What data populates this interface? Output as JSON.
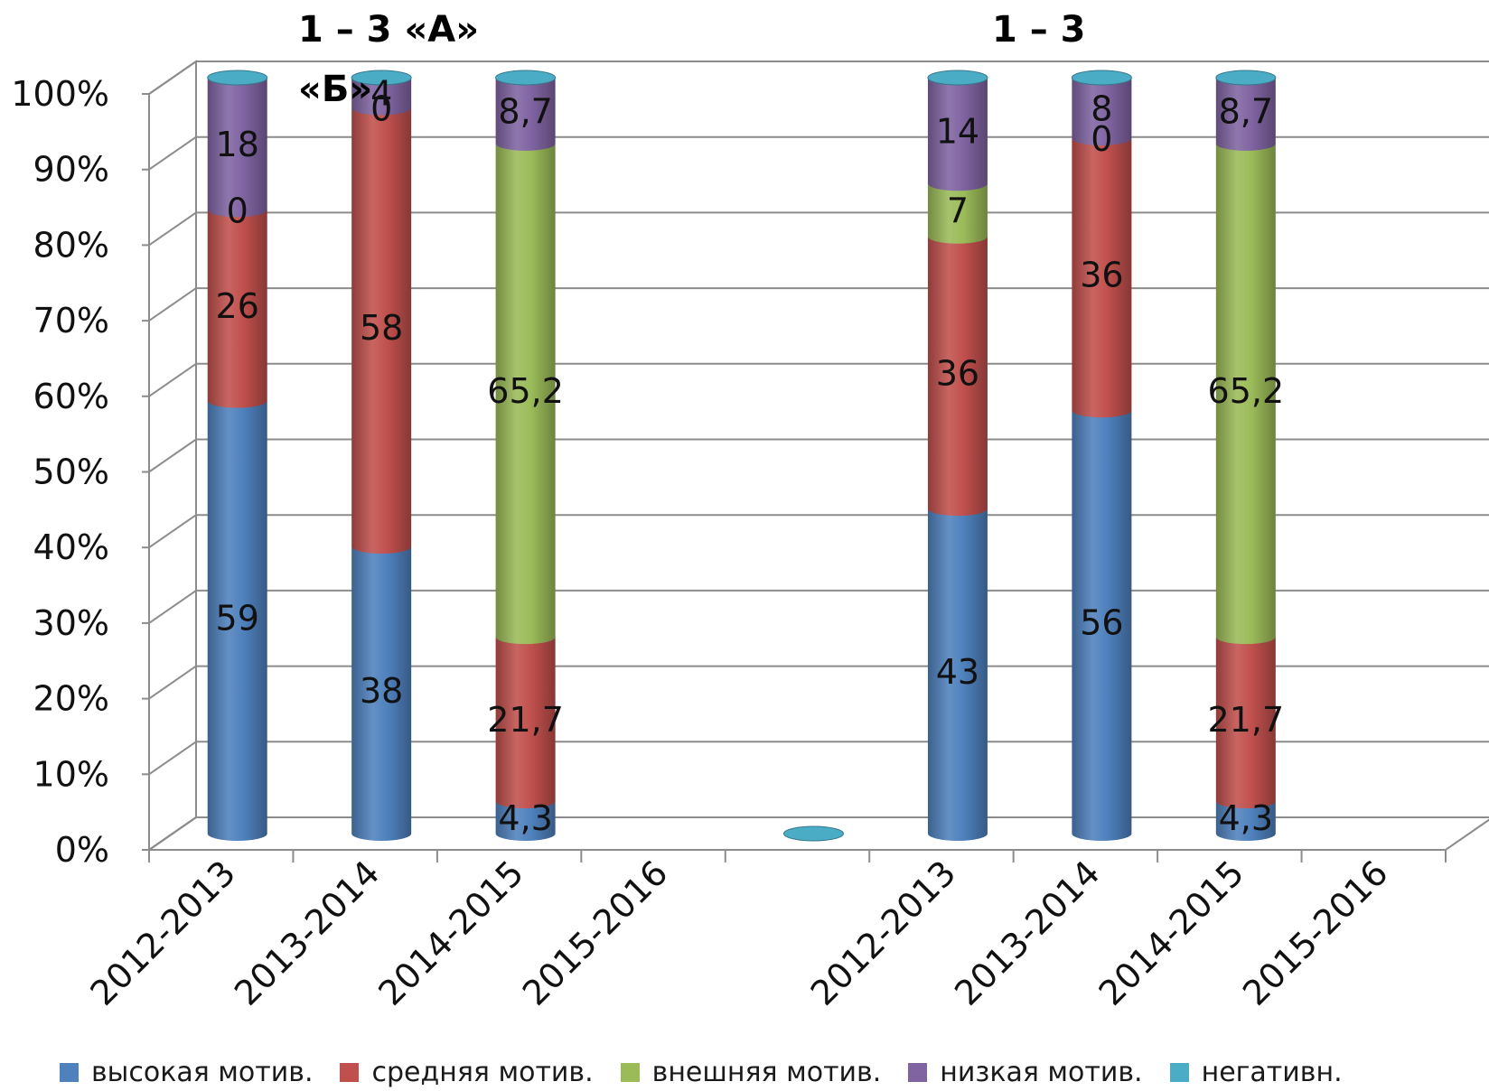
{
  "titles": {
    "group1_line1": "1 – 3 «А»",
    "group1_line2": "«Б»",
    "group2": "1 – 3"
  },
  "chart_data": {
    "type": "bar",
    "stacked": true,
    "style": "3d-cylinder",
    "ylim": [
      0,
      100
    ],
    "yticks": [
      "0%",
      "10%",
      "20%",
      "30%",
      "40%",
      "50%",
      "60%",
      "70%",
      "80%",
      "90%",
      "100%"
    ],
    "grid": true,
    "legend_position": "bottom",
    "categories": [
      "2012-2013",
      "2013-2014",
      "2014-2015",
      "2015-2016",
      "",
      "2012-2013",
      "2013-2014",
      "2014-2015",
      "2015-2016"
    ],
    "series": [
      {
        "name": "высокая мотив.",
        "color": "#4f81bd",
        "values": [
          59,
          38,
          4.3,
          null,
          null,
          43,
          56,
          4.3,
          null
        ],
        "labels": [
          "59",
          "38",
          "4,3",
          null,
          null,
          "43",
          "56",
          "4,3",
          null
        ]
      },
      {
        "name": "средняя мотив.",
        "color": "#c0504d",
        "values": [
          26,
          58,
          21.7,
          null,
          null,
          36,
          36,
          21.7,
          null
        ],
        "labels": [
          "26",
          "58",
          "21,7",
          null,
          null,
          "36",
          "36",
          "21,7",
          null
        ]
      },
      {
        "name": "внешняя мотив.",
        "color": "#9bbb59",
        "values": [
          0,
          0,
          65.2,
          null,
          null,
          7,
          0,
          65.2,
          null
        ],
        "labels": [
          "0",
          "0",
          "65,2",
          null,
          null,
          "7",
          "0",
          "65,2",
          null
        ]
      },
      {
        "name": "низкая мотив.",
        "color": "#8064a2",
        "values": [
          18,
          4,
          8.7,
          null,
          null,
          14,
          8,
          8.7,
          null
        ],
        "labels": [
          "18",
          "4",
          "8,7",
          null,
          null,
          "14",
          "8",
          "8,7",
          null
        ]
      },
      {
        "name": "негативн.",
        "color": "#4bacc6",
        "values": [
          0,
          0,
          0,
          null,
          0,
          0,
          0,
          0,
          null
        ],
        "labels": [
          null,
          null,
          null,
          null,
          null,
          null,
          null,
          null,
          null
        ]
      }
    ]
  }
}
